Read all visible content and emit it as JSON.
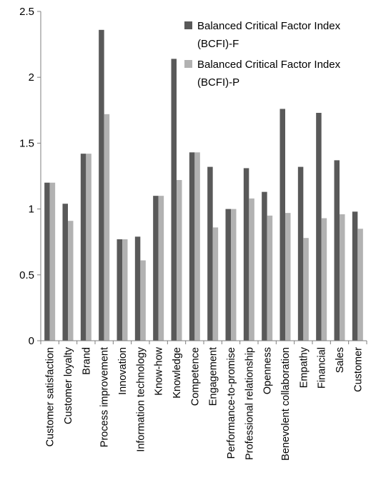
{
  "chart_data": {
    "type": "bar",
    "categories": [
      "Customer satisfaction",
      "Customer loyalty",
      "Brand",
      "Process improvement",
      "Innovation",
      "Information technology",
      "Know-how",
      "Knowledge",
      "Competence",
      "Engagement",
      "Performance-to-promise",
      "Professional relationship",
      "Openness",
      "Benevolent collaboration",
      "Empathy",
      "Financial",
      "Sales",
      "Customer"
    ],
    "series": [
      {
        "name": "Balanced Critical Factor Index (BCFI)-F",
        "legend_lines": [
          "Balanced Critical Factor Index",
          "(BCFI)-F"
        ],
        "color": "#595959",
        "values": [
          1.2,
          1.04,
          1.42,
          2.36,
          0.77,
          0.79,
          1.1,
          2.14,
          1.43,
          1.32,
          1.0,
          1.31,
          1.13,
          1.76,
          1.32,
          1.73,
          1.37,
          0.98
        ]
      },
      {
        "name": "Balanced Critical Factor Index (BCFI)-P",
        "legend_lines": [
          "Balanced Critical Factor Index",
          "(BCFI)-P"
        ],
        "color": "#b2b2b2",
        "values": [
          1.2,
          0.91,
          1.42,
          1.72,
          0.77,
          0.61,
          1.1,
          1.22,
          1.43,
          0.86,
          1.0,
          1.08,
          0.95,
          0.97,
          0.78,
          0.93,
          0.96,
          0.85
        ]
      }
    ],
    "y_ticks": [
      "0",
      "0.5",
      "1",
      "1.5",
      "2",
      "2.5"
    ],
    "ylim": [
      0,
      2.5
    ],
    "title": "",
    "xlabel": "",
    "ylabel": "",
    "grid": false,
    "legend_position": "top-right"
  }
}
